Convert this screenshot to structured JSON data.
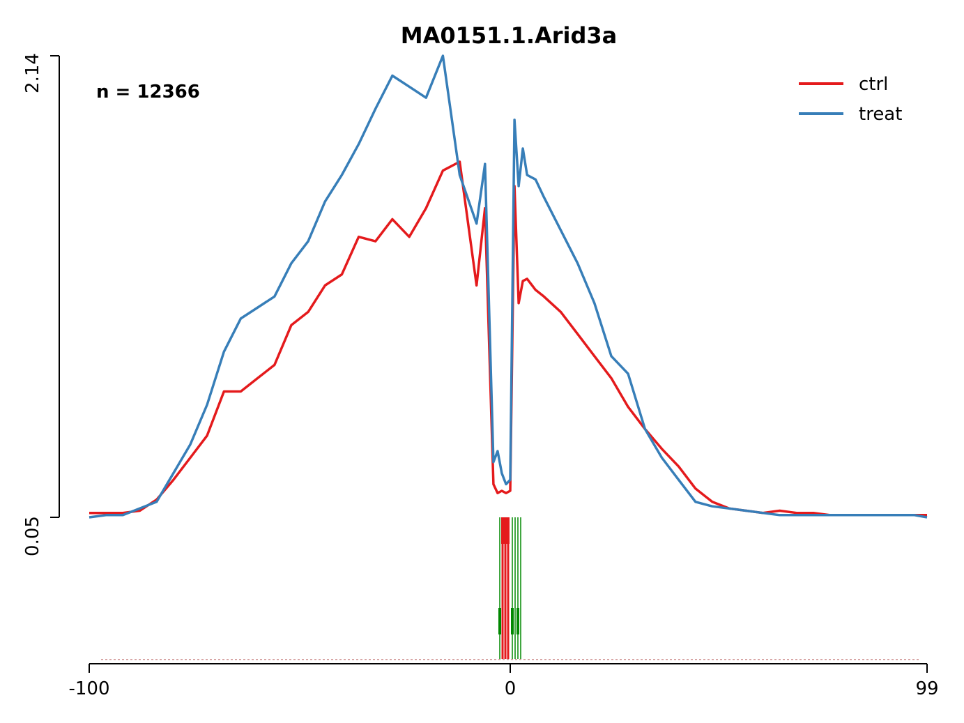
{
  "chart_data": {
    "type": "line",
    "title": "MA0151.1.Arid3a",
    "annotation": "n = 12366",
    "x_range": [
      -100,
      99
    ],
    "y_range": [
      0.05,
      2.14
    ],
    "x_tick_labels": [
      "-100",
      "0",
      "99"
    ],
    "y_tick_labels": [
      "0.05",
      "2.14"
    ],
    "xlabel": "",
    "ylabel": "",
    "grid": false,
    "legend_position": "top-right",
    "series": [
      {
        "name": "ctrl",
        "color": "#e41a1c",
        "x": [
          -100,
          -96,
          -92,
          -88,
          -84,
          -80,
          -76,
          -72,
          -68,
          -64,
          -60,
          -56,
          -52,
          -48,
          -44,
          -40,
          -36,
          -32,
          -28,
          -24,
          -20,
          -16,
          -12,
          -8,
          -6,
          -4,
          -3,
          -2,
          -1,
          0,
          1,
          2,
          3,
          4,
          6,
          8,
          12,
          16,
          20,
          24,
          28,
          32,
          36,
          40,
          44,
          48,
          52,
          56,
          60,
          64,
          68,
          72,
          76,
          80,
          84,
          88,
          92,
          96,
          99
        ],
        "y": [
          0.07,
          0.07,
          0.07,
          0.08,
          0.13,
          0.22,
          0.32,
          0.42,
          0.62,
          0.62,
          0.68,
          0.74,
          0.92,
          0.98,
          1.1,
          1.15,
          1.32,
          1.3,
          1.4,
          1.32,
          1.45,
          1.62,
          1.66,
          1.1,
          1.45,
          0.2,
          0.16,
          0.17,
          0.16,
          0.17,
          1.55,
          1.02,
          1.12,
          1.13,
          1.08,
          1.05,
          0.98,
          0.88,
          0.78,
          0.68,
          0.55,
          0.45,
          0.36,
          0.28,
          0.18,
          0.12,
          0.09,
          0.08,
          0.07,
          0.08,
          0.07,
          0.07,
          0.06,
          0.06,
          0.06,
          0.06,
          0.06,
          0.06,
          0.06
        ]
      },
      {
        "name": "treat",
        "color": "#377eb8",
        "x": [
          -100,
          -96,
          -92,
          -88,
          -84,
          -80,
          -76,
          -72,
          -68,
          -64,
          -60,
          -56,
          -52,
          -48,
          -44,
          -40,
          -36,
          -32,
          -28,
          -24,
          -20,
          -16,
          -12,
          -8,
          -6,
          -4,
          -3,
          -2,
          -1,
          0,
          1,
          2,
          3,
          4,
          6,
          8,
          12,
          16,
          20,
          24,
          28,
          32,
          36,
          40,
          44,
          48,
          52,
          56,
          60,
          64,
          68,
          72,
          76,
          80,
          84,
          88,
          92,
          96,
          99
        ],
        "y": [
          0.05,
          0.06,
          0.06,
          0.09,
          0.12,
          0.25,
          0.38,
          0.56,
          0.8,
          0.95,
          1.0,
          1.05,
          1.2,
          1.3,
          1.48,
          1.6,
          1.74,
          1.9,
          2.05,
          2.0,
          1.95,
          2.14,
          1.6,
          1.38,
          1.65,
          0.3,
          0.35,
          0.25,
          0.2,
          0.22,
          1.85,
          1.55,
          1.72,
          1.6,
          1.58,
          1.5,
          1.35,
          1.2,
          1.02,
          0.78,
          0.7,
          0.45,
          0.32,
          0.22,
          0.12,
          0.1,
          0.09,
          0.08,
          0.07,
          0.06,
          0.06,
          0.06,
          0.06,
          0.06,
          0.06,
          0.06,
          0.06,
          0.06,
          0.05
        ]
      }
    ]
  }
}
